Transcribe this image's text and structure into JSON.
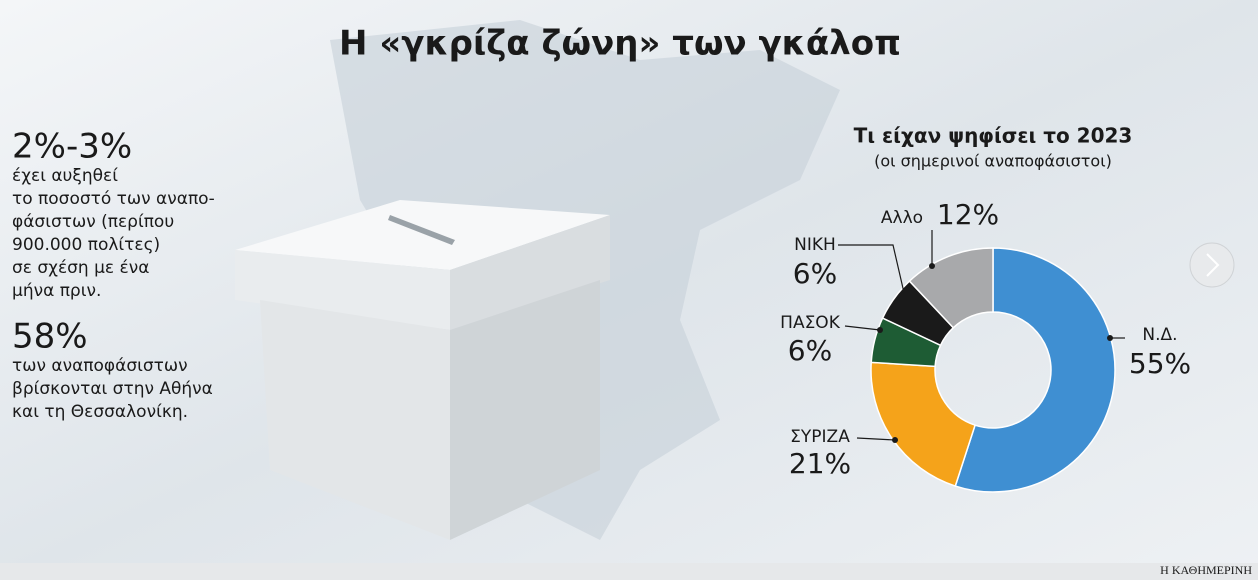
{
  "title": "Η «γκρίζα ζώνη» των γκάλοπ",
  "stats": [
    {
      "value": "2%-3%",
      "lines": [
        "έχει αυξηθεί",
        "το ποσοστό των αναπο-",
        "φάσιστων (περίπου",
        "900.000 πολίτες)",
        "σε σχέση με ένα",
        "μήνα πριν."
      ]
    },
    {
      "value": "58%",
      "lines": [
        "των αναποφάσιστων",
        "βρίσκονται στην Αθήνα",
        "και τη Θεσσαλονίκη."
      ]
    }
  ],
  "chart_data": {
    "type": "donut",
    "title": "Τι είχαν ψηφίσει το 2023",
    "subtitle": "(οι σημερινοί αναποφάσιστοι)",
    "categories": [
      "Ν.Δ.",
      "ΣΥΡΙΖΑ",
      "ΠΑΣΟΚ",
      "ΝΙΚΗ",
      "Αλλο"
    ],
    "values": [
      55,
      21,
      6,
      6,
      12
    ],
    "value_labels": [
      "55%",
      "21%",
      "6%",
      "6%",
      "12%"
    ],
    "colors": [
      "#3f8fd2",
      "#f5a31a",
      "#1e5c34",
      "#1a1a1a",
      "#a8a9ab"
    ]
  },
  "footer": "Η ΚΑΘΗΜΕΡΙΝΗ"
}
